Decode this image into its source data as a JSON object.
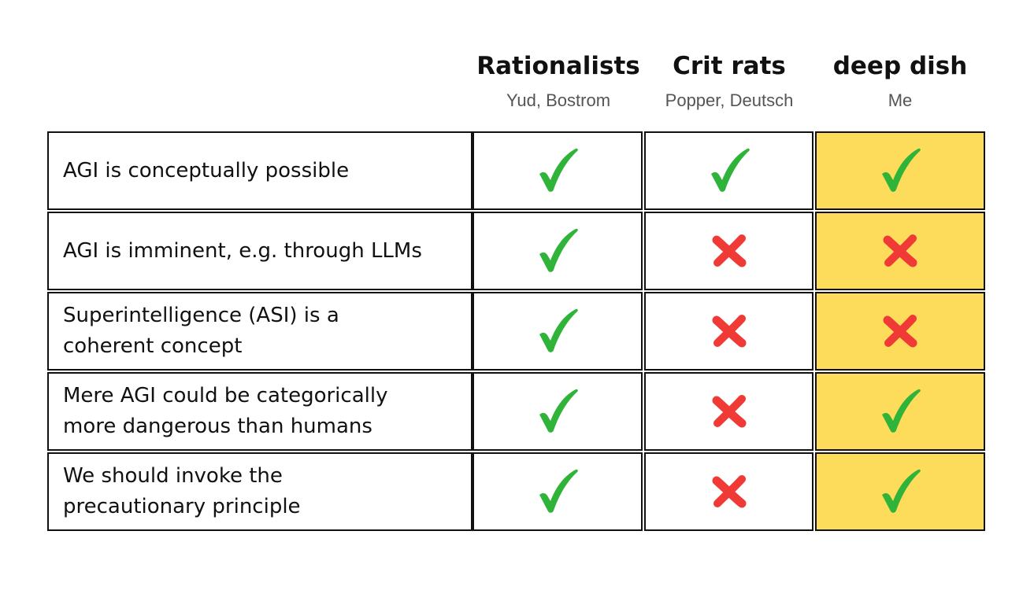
{
  "columns": [
    {
      "name": "Rationalists",
      "subtitle": "Yud, Bostrom",
      "highlight": false
    },
    {
      "name": "Crit rats",
      "subtitle": "Popper, Deutsch",
      "highlight": false
    },
    {
      "name": "deep dish",
      "subtitle": "Me",
      "highlight": true
    }
  ],
  "rows": [
    {
      "claim": "AGI is conceptually possible",
      "marks": [
        "check",
        "check",
        "check"
      ]
    },
    {
      "claim": "AGI is imminent, e.g. through LLMs",
      "marks": [
        "check",
        "cross",
        "cross"
      ]
    },
    {
      "claim": "Superintelligence (ASI) is a coherent concept",
      "marks": [
        "check",
        "cross",
        "cross"
      ]
    },
    {
      "claim": "Mere AGI could be categorically more dangerous than humans",
      "marks": [
        "check",
        "cross",
        "check"
      ]
    },
    {
      "claim": "We should invoke the precautionary principle",
      "marks": [
        "check",
        "cross",
        "check"
      ]
    }
  ],
  "colors": {
    "check": "#2fb339",
    "cross": "#f03a35",
    "highlight": "#fddc5c",
    "border": "#111111"
  },
  "icons": {
    "check": "checkmark-icon",
    "cross": "cross-icon"
  }
}
